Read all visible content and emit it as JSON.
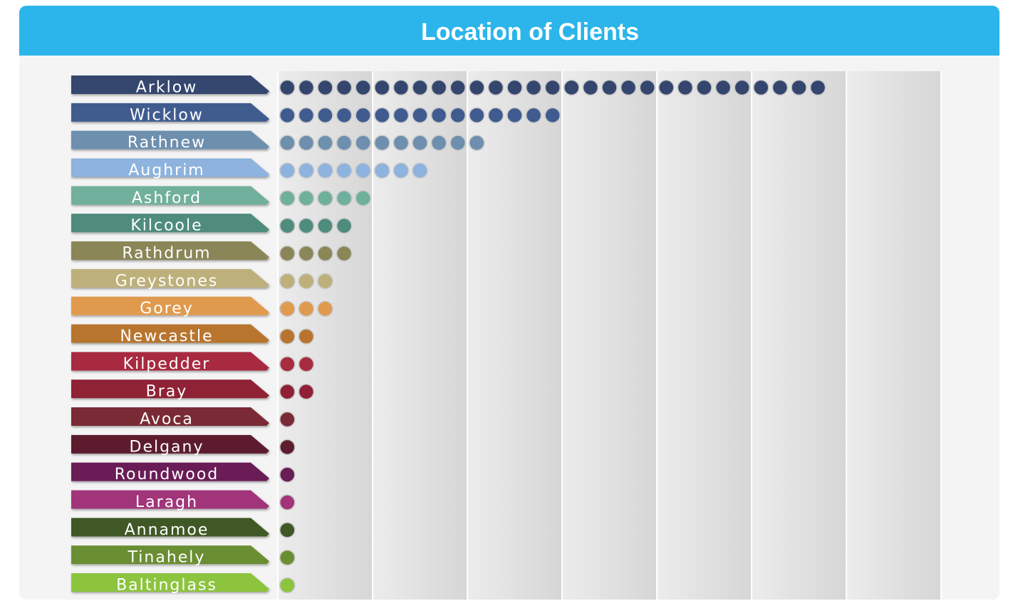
{
  "chart_data": {
    "type": "dot",
    "title": "Location of Clients",
    "categories": [
      "Arklow",
      "Wicklow",
      "Rathnew",
      "Aughrim",
      "Ashford",
      "Kilcoole",
      "Rathdrum",
      "Greystones",
      "Gorey",
      "Newcastle",
      "Kilpedder",
      "Bray",
      "Avoca",
      "Delgany",
      "Roundwood",
      "Laragh",
      "Annamoe",
      "Tinahely",
      "Baltinglass"
    ],
    "values": [
      29,
      15,
      11,
      8,
      5,
      4,
      4,
      3,
      3,
      2,
      2,
      2,
      1,
      1,
      1,
      1,
      1,
      1,
      1
    ],
    "colors": [
      "#34466e",
      "#3f5b8f",
      "#6e8fae",
      "#8db3de",
      "#6fb09c",
      "#4f8c7d",
      "#8a8658",
      "#bdb07a",
      "#e09a4e",
      "#b8742f",
      "#a82c40",
      "#8f2036",
      "#7a2a36",
      "#5c1e2e",
      "#6a1e56",
      "#a2347a",
      "#3f5826",
      "#6a8e30",
      "#8cc43c"
    ],
    "xlim": [
      0,
      35
    ],
    "xticks": [
      0,
      5,
      10,
      15,
      20,
      25,
      30,
      35
    ],
    "grid": true
  }
}
